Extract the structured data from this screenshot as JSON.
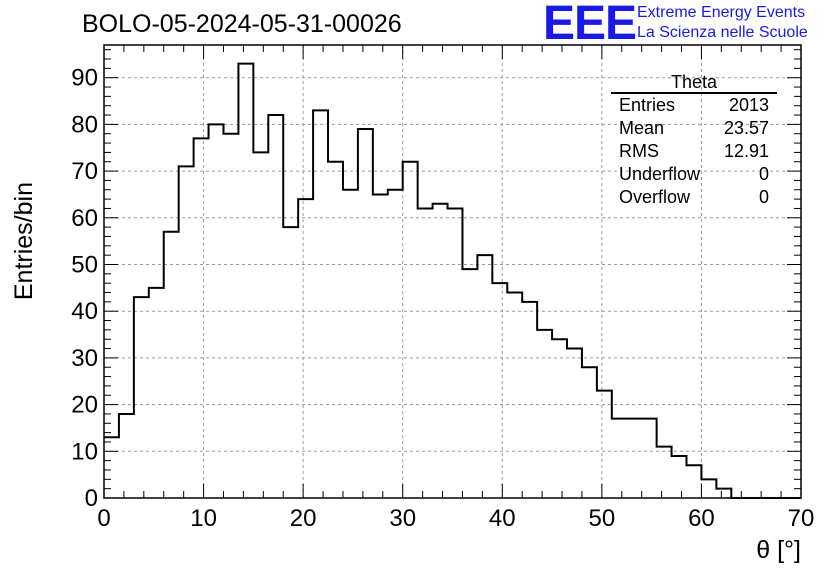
{
  "title": "BOLO-05-2024-05-31-00026",
  "logo": {
    "text": "EEE",
    "line1": "Extreme Energy Events",
    "line2": "La Scienza nelle Scuole",
    "color": "#1a1ae6"
  },
  "stats": {
    "title": "Theta",
    "rows": [
      {
        "label": "Entries",
        "value": "2013"
      },
      {
        "label": "Mean",
        "value": "23.57"
      },
      {
        "label": "RMS",
        "value": "12.91"
      },
      {
        "label": "Underflow",
        "value": "0"
      },
      {
        "label": "Overflow",
        "value": "0"
      }
    ]
  },
  "chart_data": {
    "type": "histogram",
    "xlabel": "θ [°]",
    "ylabel": "Entries/bin",
    "xlim": [
      0,
      70
    ],
    "ylim": [
      0,
      97
    ],
    "xticks": [
      0,
      10,
      20,
      30,
      40,
      50,
      60,
      70
    ],
    "yticks": [
      0,
      10,
      20,
      30,
      40,
      50,
      60,
      70,
      80,
      90
    ],
    "grid": true,
    "bin_width": 1.5,
    "bin_edges_start": 0,
    "values": [
      13,
      18,
      43,
      45,
      57,
      71,
      77,
      80,
      78,
      93,
      74,
      82,
      58,
      64,
      83,
      72,
      66,
      79,
      65,
      66,
      72,
      62,
      63,
      62,
      49,
      52,
      46,
      44,
      42,
      36,
      34,
      32,
      28,
      23,
      17,
      17,
      17,
      11,
      9,
      7,
      4,
      2,
      0,
      0,
      0,
      0,
      0
    ]
  }
}
